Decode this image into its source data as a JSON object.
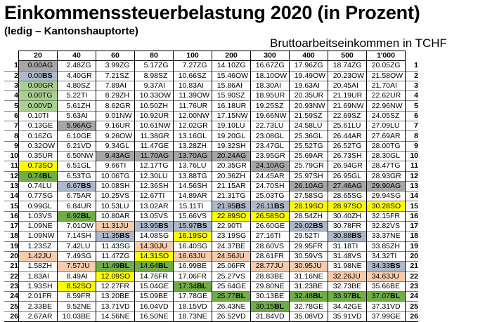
{
  "title": "Einkommenssteuerbelastung 2020 (in Prozent)",
  "subtitle": "(ledig – Kantonshauptorte)",
  "caption": "Bruttoarbeitseinkommen in TCHF",
  "colors": {
    "green": "#a9d18e",
    "gray": "#a6a6a6",
    "yellow": "#ffff00",
    "blue": "#adb9ca",
    "peach": "#f8cbad",
    "bright_green": "#70ad47"
  },
  "columns": [
    "20",
    "40",
    "60",
    "80",
    "100",
    "200",
    "300",
    "400",
    "500",
    "1'000"
  ],
  "rows": [
    {
      "n": "1",
      "cells": [
        [
          "0.00",
          "AG",
          "g"
        ],
        [
          "2.48",
          "ZG",
          ""
        ],
        [
          "3.99",
          "ZG",
          ""
        ],
        [
          "5.17",
          "ZG",
          ""
        ],
        [
          "7.27",
          "ZG",
          ""
        ],
        [
          "14.10",
          "ZG",
          ""
        ],
        [
          "16.67",
          "ZG",
          ""
        ],
        [
          "17.96",
          "ZG",
          ""
        ],
        [
          "18.74",
          "ZG",
          ""
        ],
        [
          "20.05",
          "ZG",
          ""
        ]
      ]
    },
    {
      "n": "2",
      "cells": [
        [
          "0.00",
          "BS",
          "b"
        ],
        [
          "4.40",
          "GR",
          ""
        ],
        [
          "7.21",
          "SZ",
          ""
        ],
        [
          "8.98",
          "SZ",
          ""
        ],
        [
          "10.66",
          "SZ",
          ""
        ],
        [
          "15.46",
          "OW",
          ""
        ],
        [
          "18.10",
          "OW",
          ""
        ],
        [
          "19.49",
          "OW",
          ""
        ],
        [
          "20.23",
          "OW",
          ""
        ],
        [
          "21.58",
          "OW",
          ""
        ]
      ]
    },
    {
      "n": "3",
      "cells": [
        [
          "0.00",
          "GR",
          "G"
        ],
        [
          "4.80",
          "SZ",
          ""
        ],
        [
          "7.89",
          "AI",
          ""
        ],
        [
          "9.37",
          "AI",
          ""
        ],
        [
          "10.83",
          "AI",
          ""
        ],
        [
          "15.86",
          "AI",
          ""
        ],
        [
          "18.30",
          "AI",
          ""
        ],
        [
          "19.63",
          "AI",
          ""
        ],
        [
          "20.45",
          "AI",
          ""
        ],
        [
          "21.70",
          "AI",
          ""
        ]
      ]
    },
    {
      "n": "4",
      "cells": [
        [
          "0.00",
          "TG",
          "G"
        ],
        [
          "5.22",
          "TI",
          ""
        ],
        [
          "8.29",
          "ZH",
          ""
        ],
        [
          "10.33",
          "OW",
          ""
        ],
        [
          "11.39",
          "OW",
          ""
        ],
        [
          "15.90",
          "SZ",
          ""
        ],
        [
          "18.95",
          "UR",
          ""
        ],
        [
          "20.35",
          "UR",
          ""
        ],
        [
          "21.19",
          "UR",
          ""
        ],
        [
          "22.62",
          "UR",
          ""
        ]
      ]
    },
    {
      "n": "5",
      "cells": [
        [
          "0.00",
          "VD",
          "G"
        ],
        [
          "5.61",
          "ZH",
          ""
        ],
        [
          "8.62",
          "GR",
          ""
        ],
        [
          "10.50",
          "ZH",
          ""
        ],
        [
          "11.76",
          "UR",
          ""
        ],
        [
          "16.18",
          "UR",
          ""
        ],
        [
          "19.25",
          "SZ",
          ""
        ],
        [
          "20.93",
          "NW",
          ""
        ],
        [
          "21.69",
          "NW",
          ""
        ],
        [
          "22.96",
          "NW",
          ""
        ]
      ]
    },
    {
      "n": "6",
      "cells": [
        [
          "0.10",
          "TI",
          ""
        ],
        [
          "5.63",
          "AI",
          ""
        ],
        [
          "9.01",
          "NW",
          ""
        ],
        [
          "10.92",
          "UR",
          ""
        ],
        [
          "12.00",
          "NW",
          ""
        ],
        [
          "17.15",
          "NW",
          ""
        ],
        [
          "19.66",
          "NW",
          ""
        ],
        [
          "21.59",
          "SZ",
          ""
        ],
        [
          "22.69",
          "SZ",
          ""
        ],
        [
          "24.05",
          "SZ",
          ""
        ]
      ]
    },
    {
      "n": "7",
      "cells": [
        [
          "0.13",
          "GE",
          ""
        ],
        [
          "5.96",
          "AG",
          "g"
        ],
        [
          "9.16",
          "UR",
          ""
        ],
        [
          "10.61",
          "NW",
          ""
        ],
        [
          "12.02",
          "GR",
          ""
        ],
        [
          "19.10",
          "LU",
          ""
        ],
        [
          "22.73",
          "LU",
          ""
        ],
        [
          "24.58",
          "LU",
          ""
        ],
        [
          "25.61",
          "LU",
          ""
        ],
        [
          "27.09",
          "LU",
          ""
        ]
      ]
    },
    {
      "n": "8",
      "cells": [
        [
          "0.16",
          "ZG",
          ""
        ],
        [
          "6.10",
          "GE",
          ""
        ],
        [
          "9.26",
          "OW",
          ""
        ],
        [
          "11.38",
          "GR",
          ""
        ],
        [
          "13.16",
          "GL",
          ""
        ],
        [
          "19.20",
          "GL",
          ""
        ],
        [
          "23.08",
          "GL",
          ""
        ],
        [
          "25.36",
          "GL",
          ""
        ],
        [
          "26.44",
          "AR",
          ""
        ],
        [
          "27.69",
          "AR",
          ""
        ]
      ]
    },
    {
      "n": "9",
      "cells": [
        [
          "0.32",
          "OW",
          ""
        ],
        [
          "6.21",
          "VD",
          ""
        ],
        [
          "9.34",
          "GL",
          ""
        ],
        [
          "11.47",
          "GE",
          ""
        ],
        [
          "13.28",
          "ZH",
          ""
        ],
        [
          "19.32",
          "SH",
          ""
        ],
        [
          "23.47",
          "GL",
          ""
        ],
        [
          "25.52",
          "TG",
          ""
        ],
        [
          "26.52",
          "TG",
          ""
        ],
        [
          "28.00",
          "TG",
          ""
        ]
      ]
    },
    {
      "n": "10",
      "cells": [
        [
          "0.35",
          "UR",
          ""
        ],
        [
          "6.50",
          "NW",
          ""
        ],
        [
          "9.43",
          "AG",
          "g"
        ],
        [
          "11.70",
          "AG",
          "g"
        ],
        [
          "13.70",
          "AG",
          "g"
        ],
        [
          "20.24",
          "AG",
          "g"
        ],
        [
          "23.95",
          "GR",
          ""
        ],
        [
          "25.69",
          "AR",
          ""
        ],
        [
          "26.73",
          "SH",
          ""
        ],
        [
          "28.30",
          "GL",
          ""
        ]
      ]
    },
    {
      "n": "11",
      "cells": [
        [
          "0.73",
          "SO",
          "y"
        ],
        [
          "6.51",
          "GL",
          ""
        ],
        [
          "9.66",
          "TI",
          ""
        ],
        [
          "12.17",
          "TG",
          ""
        ],
        [
          "13.76",
          "LU",
          ""
        ],
        [
          "20.35",
          "GR",
          ""
        ],
        [
          "24.10",
          "AG",
          "g"
        ],
        [
          "25.79",
          "GR",
          ""
        ],
        [
          "26.94",
          "GR",
          ""
        ],
        [
          "28.47",
          "TG",
          ""
        ]
      ]
    },
    {
      "n": "12",
      "cells": [
        [
          "0.74",
          "BL",
          "B"
        ],
        [
          "6.53",
          "TG",
          ""
        ],
        [
          "10.06",
          "TG",
          ""
        ],
        [
          "12.30",
          "LU",
          ""
        ],
        [
          "13.88",
          "TG",
          ""
        ],
        [
          "20.36",
          "ZH",
          ""
        ],
        [
          "24.45",
          "AR",
          ""
        ],
        [
          "25.97",
          "SH",
          ""
        ],
        [
          "26.95",
          "GL",
          ""
        ],
        [
          "28.93",
          "GR",
          ""
        ]
      ]
    },
    {
      "n": "13",
      "cells": [
        [
          "0.74",
          "LU",
          ""
        ],
        [
          "6.67",
          "BS",
          "b"
        ],
        [
          "10.08",
          "SH",
          ""
        ],
        [
          "12.36",
          "SH",
          ""
        ],
        [
          "14.56",
          "SH",
          ""
        ],
        [
          "21.15",
          "AR",
          ""
        ],
        [
          "24.70",
          "SH",
          ""
        ],
        [
          "26.10",
          "AG",
          "g"
        ],
        [
          "27.46",
          "AG",
          "g"
        ],
        [
          "29.90",
          "AG",
          "g"
        ]
      ]
    },
    {
      "n": "14",
      "cells": [
        [
          "0.77",
          "SG",
          ""
        ],
        [
          "6.75",
          "AR",
          ""
        ],
        [
          "10.25",
          "VS",
          ""
        ],
        [
          "12.67",
          "TI",
          ""
        ],
        [
          "14.89",
          "AR",
          ""
        ],
        [
          "21.31",
          "TG",
          ""
        ],
        [
          "25.03",
          "TG",
          ""
        ],
        [
          "27.58",
          "SG",
          ""
        ],
        [
          "28.65",
          "SG",
          ""
        ],
        [
          "29.94",
          "SG",
          ""
        ]
      ]
    },
    {
      "n": "15",
      "cells": [
        [
          "0.99",
          "GL",
          ""
        ],
        [
          "6.84",
          "UR",
          ""
        ],
        [
          "10.53",
          "LU",
          ""
        ],
        [
          "13.02",
          "AR",
          ""
        ],
        [
          "15.11",
          "TI",
          ""
        ],
        [
          "21.95",
          "BS",
          "b"
        ],
        [
          "26.11",
          "BS",
          "b"
        ],
        [
          "28.19",
          "SO",
          "y"
        ],
        [
          "28.97",
          "SO",
          "y"
        ],
        [
          "30.28",
          "SO",
          "y"
        ]
      ]
    },
    {
      "n": "16",
      "cells": [
        [
          "1.03",
          "VS",
          ""
        ],
        [
          "6.92",
          "BL",
          "B"
        ],
        [
          "10.80",
          "AR",
          ""
        ],
        [
          "13.05",
          "VS",
          ""
        ],
        [
          "15.66",
          "VS",
          ""
        ],
        [
          "22.89",
          "SO",
          "y"
        ],
        [
          "26.58",
          "SO",
          "y"
        ],
        [
          "28.54",
          "ZH",
          ""
        ],
        [
          "30.40",
          "ZH",
          ""
        ],
        [
          "32.15",
          "FR",
          ""
        ]
      ]
    },
    {
      "n": "17",
      "cells": [
        [
          "1.09",
          "NE",
          ""
        ],
        [
          "7.01",
          "OW",
          ""
        ],
        [
          "11.31",
          "JU",
          "p"
        ],
        [
          "13.95",
          "BS",
          "b"
        ],
        [
          "15.97",
          "BS",
          "b"
        ],
        [
          "22.90",
          "TI",
          ""
        ],
        [
          "26.60",
          "GE",
          ""
        ],
        [
          "29.02",
          "BS",
          "b"
        ],
        [
          "30.78",
          "FR",
          ""
        ],
        [
          "32.82",
          "VS",
          ""
        ]
      ]
    },
    {
      "n": "18",
      "cells": [
        [
          "1.09",
          "NW",
          ""
        ],
        [
          "7.14",
          "SH",
          ""
        ],
        [
          "11.35",
          "BS",
          "b"
        ],
        [
          "14.08",
          "SG",
          ""
        ],
        [
          "16.19",
          "SO",
          "y"
        ],
        [
          "23.19",
          "SG",
          ""
        ],
        [
          "27.16",
          "TI",
          ""
        ],
        [
          "29.52",
          "TI",
          ""
        ],
        [
          "30.88",
          "BS",
          "b"
        ],
        [
          "33.37",
          "NE",
          ""
        ]
      ]
    },
    {
      "n": "19",
      "cells": [
        [
          "1.23",
          "SZ",
          ""
        ],
        [
          "7.42",
          "LU",
          ""
        ],
        [
          "11.43",
          "SG",
          ""
        ],
        [
          "14.30",
          "JU",
          "p"
        ],
        [
          "16.40",
          "SG",
          ""
        ],
        [
          "24.37",
          "BE",
          ""
        ],
        [
          "28.60",
          "VS",
          ""
        ],
        [
          "29.95",
          "FR",
          ""
        ],
        [
          "31.18",
          "TI",
          ""
        ],
        [
          "33.85",
          "ZH",
          ""
        ]
      ]
    },
    {
      "n": "20",
      "cells": [
        [
          "1.42",
          "JU",
          "p"
        ],
        [
          "7.49",
          "SG",
          ""
        ],
        [
          "11.47",
          "ZG",
          ""
        ],
        [
          "14.31",
          "SO",
          "y"
        ],
        [
          "16.63",
          "JU",
          "p"
        ],
        [
          "24.56",
          "JU",
          "p"
        ],
        [
          "28.61",
          "FR",
          ""
        ],
        [
          "30.59",
          "VS",
          ""
        ],
        [
          "31.48",
          "VS",
          ""
        ],
        [
          "34.32",
          "TI",
          ""
        ]
      ]
    },
    {
      "n": "21",
      "cells": [
        [
          "1.58",
          "ZH",
          ""
        ],
        [
          "7.57",
          "JU",
          "p"
        ],
        [
          "11.49",
          "BL",
          "B"
        ],
        [
          "14.64",
          "BL",
          "B"
        ],
        [
          "16.99",
          "BE",
          ""
        ],
        [
          "25.06",
          "FR",
          ""
        ],
        [
          "28.77",
          "JU",
          "p"
        ],
        [
          "30.95",
          "JU",
          "p"
        ],
        [
          "31.98",
          "NE",
          ""
        ],
        [
          "34.33",
          "BS",
          "b"
        ]
      ]
    },
    {
      "n": "22",
      "cells": [
        [
          "1.83",
          "AI",
          ""
        ],
        [
          "8.49",
          "AI",
          ""
        ],
        [
          "12.09",
          "SO",
          "y"
        ],
        [
          "14.76",
          "FR",
          ""
        ],
        [
          "17.06",
          "FR",
          ""
        ],
        [
          "25.27",
          "VS",
          ""
        ],
        [
          "28.83",
          "BE",
          ""
        ],
        [
          "31.16",
          "NE",
          ""
        ],
        [
          "32.26",
          "JU",
          "p"
        ],
        [
          "34.63",
          "JU",
          "p"
        ]
      ]
    },
    {
      "n": "23",
      "cells": [
        [
          "1.93",
          "SH",
          ""
        ],
        [
          "8.52",
          "SO",
          "y"
        ],
        [
          "12.27",
          "FR",
          ""
        ],
        [
          "15.04",
          "GE",
          ""
        ],
        [
          "17.34",
          "BL",
          "B"
        ],
        [
          "25.64",
          "GE",
          ""
        ],
        [
          "29.80",
          "NE",
          ""
        ],
        [
          "31.23",
          "BE",
          ""
        ],
        [
          "32.73",
          "BE",
          ""
        ],
        [
          "35.66",
          "BE",
          ""
        ]
      ]
    },
    {
      "n": "24",
      "cells": [
        [
          "2.01",
          "FR",
          ""
        ],
        [
          "8.59",
          "FR",
          ""
        ],
        [
          "13.20",
          "BE",
          ""
        ],
        [
          "15.09",
          "BE",
          ""
        ],
        [
          "17.78",
          "GE",
          ""
        ],
        [
          "25.77",
          "BL",
          "B"
        ],
        [
          "30.13",
          "BE",
          ""
        ],
        [
          "32.48",
          "BL",
          "B"
        ],
        [
          "33.97",
          "BL",
          "B"
        ],
        [
          "37.07",
          "BL",
          "B"
        ]
      ]
    },
    {
      "n": "25",
      "cells": [
        [
          "2.33",
          "BE",
          ""
        ],
        [
          "9.52",
          "NE",
          ""
        ],
        [
          "13.71",
          "VD",
          ""
        ],
        [
          "16.04",
          "VD",
          ""
        ],
        [
          "18.15",
          "VD",
          ""
        ],
        [
          "26.43",
          "NE",
          ""
        ],
        [
          "30.15",
          "BL",
          "B"
        ],
        [
          "32.78",
          "GE",
          ""
        ],
        [
          "34.42",
          "GE",
          ""
        ],
        [
          "37.31",
          "VD",
          ""
        ]
      ]
    },
    {
      "n": "26",
      "cells": [
        [
          "2.67",
          "AR",
          ""
        ],
        [
          "10.03",
          "BE",
          ""
        ],
        [
          "14.56",
          "NE",
          ""
        ],
        [
          "16.50",
          "NE",
          ""
        ],
        [
          "18.73",
          "NE",
          ""
        ],
        [
          "26.52",
          "VD",
          ""
        ],
        [
          "31.84",
          "VD",
          ""
        ],
        [
          "35.08",
          "VD",
          ""
        ],
        [
          "35.91",
          "VD",
          ""
        ],
        [
          "37.99",
          "GE",
          ""
        ]
      ]
    }
  ]
}
